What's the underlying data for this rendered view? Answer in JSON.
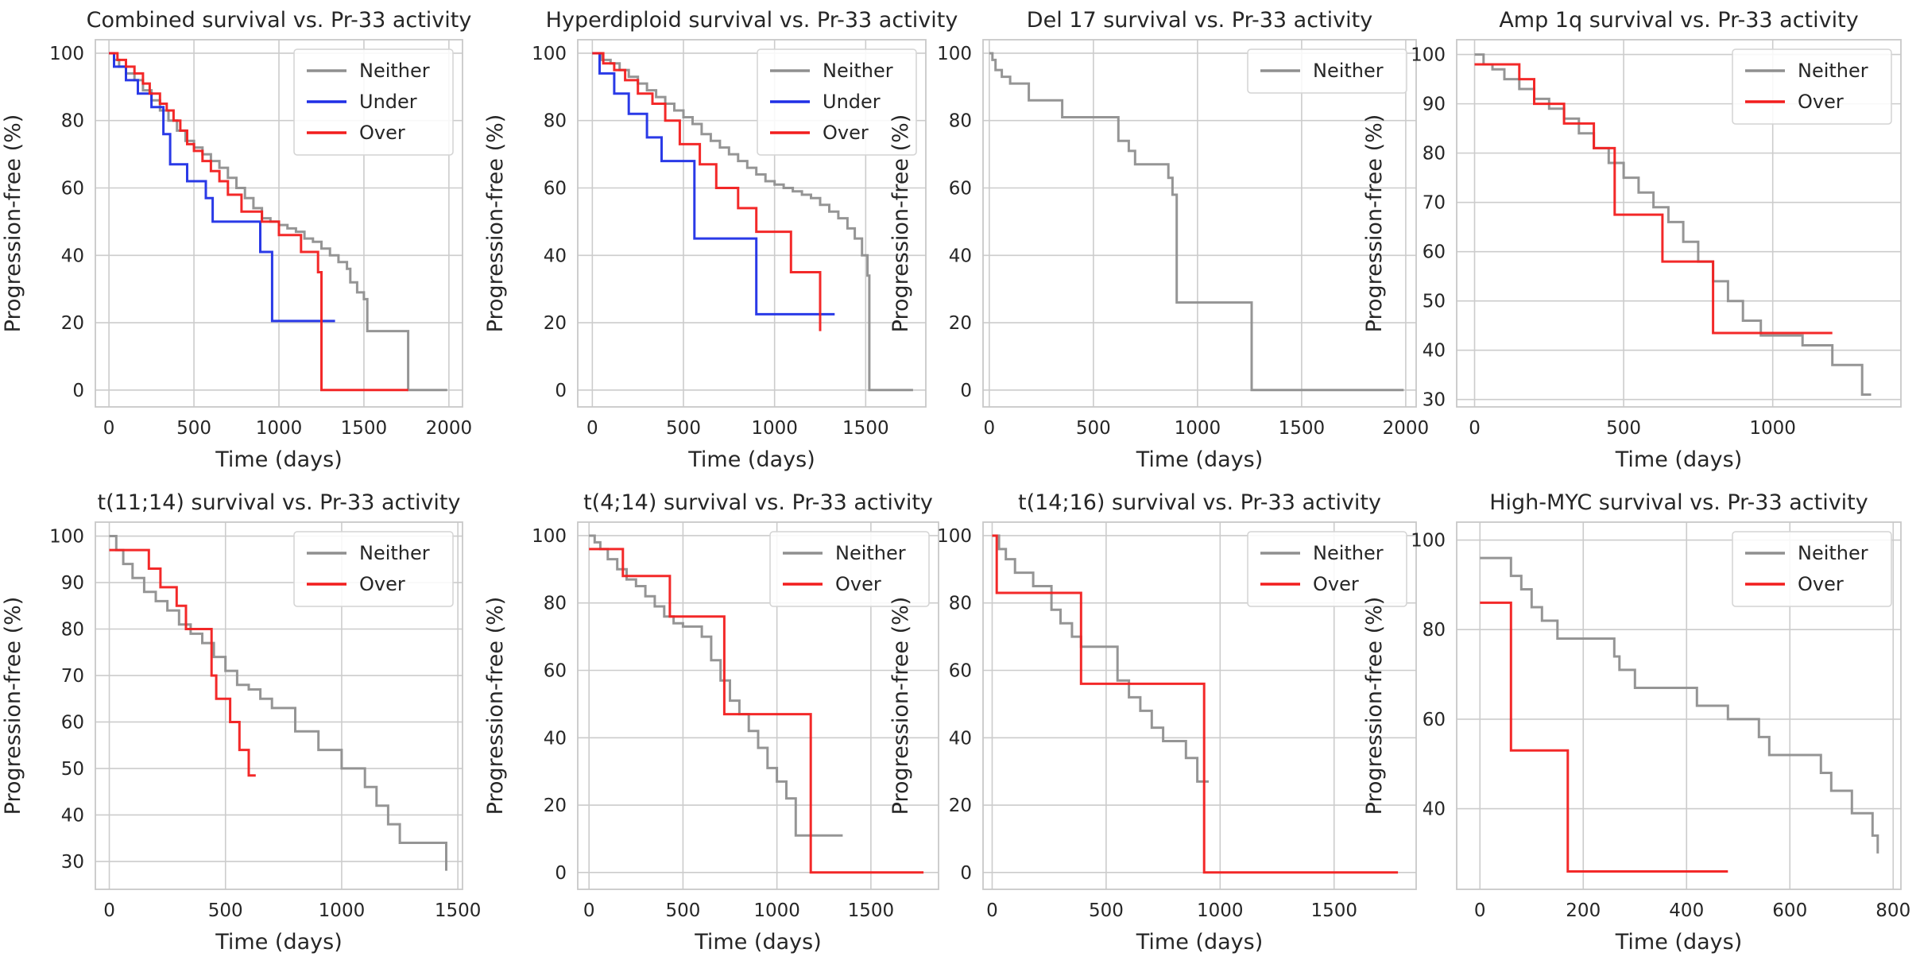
{
  "colors": {
    "Neither": "#8f8f8f",
    "Under": "#1f2fe6",
    "Over": "#f21d1d",
    "grid": "#cccccc",
    "frame": "#c8c8c8"
  },
  "chart_data": [
    {
      "type": "line",
      "step": true,
      "title": "Combined survival vs. Pr-33 activity",
      "xlabel": "Time (days)",
      "ylabel": "Progression-free (%)",
      "xlim": [
        -80,
        2080
      ],
      "ylim": [
        -5,
        104
      ],
      "xticks": [
        0,
        500,
        1000,
        1500,
        2000
      ],
      "yticks": [
        0,
        20,
        40,
        60,
        80,
        100
      ],
      "legend": [
        "Neither",
        "Under",
        "Over"
      ],
      "series": [
        {
          "name": "Neither",
          "x": [
            0,
            30,
            60,
            100,
            150,
            200,
            250,
            300,
            350,
            400,
            450,
            500,
            550,
            600,
            650,
            700,
            750,
            800,
            850,
            900,
            950,
            1000,
            1050,
            1100,
            1150,
            1200,
            1250,
            1300,
            1350,
            1400,
            1420,
            1460,
            1500,
            1520,
            1760,
            1990
          ],
          "y": [
            100,
            98,
            96,
            94,
            92,
            89,
            86,
            83,
            80,
            77,
            74,
            72,
            70,
            68,
            66,
            63,
            60,
            57,
            54,
            51,
            50,
            49,
            48,
            47,
            45,
            44,
            42,
            40,
            38,
            36,
            32,
            29,
            27,
            17.5,
            0,
            0
          ]
        },
        {
          "name": "Under",
          "x": [
            0,
            30,
            100,
            170,
            250,
            320,
            360,
            460,
            570,
            610,
            890,
            960,
            1330
          ],
          "y": [
            100,
            96,
            92,
            88,
            84,
            76,
            67,
            62,
            57,
            50,
            41,
            20.5,
            20.5
          ]
        },
        {
          "name": "Over",
          "x": [
            0,
            50,
            100,
            150,
            200,
            240,
            300,
            340,
            380,
            420,
            460,
            500,
            550,
            600,
            650,
            700,
            780,
            900,
            1000,
            1130,
            1230,
            1250,
            1760
          ],
          "y": [
            100,
            98,
            96,
            94,
            91,
            88,
            85,
            83,
            80,
            77,
            73,
            71,
            68,
            65,
            62,
            58,
            53,
            50,
            46,
            41,
            35,
            0,
            0
          ]
        }
      ]
    },
    {
      "type": "line",
      "step": true,
      "title": "Hyperdiploid survival vs. Pr-33 activity",
      "xlabel": "Time (days)",
      "ylabel": "Progression-free (%)",
      "xlim": [
        -80,
        1830
      ],
      "ylim": [
        -5,
        104
      ],
      "xticks": [
        0,
        500,
        1000,
        1500
      ],
      "yticks": [
        0,
        20,
        40,
        60,
        80,
        100
      ],
      "legend": [
        "Neither",
        "Under",
        "Over"
      ],
      "series": [
        {
          "name": "Neither",
          "x": [
            0,
            50,
            100,
            150,
            200,
            250,
            300,
            350,
            400,
            450,
            500,
            550,
            600,
            650,
            700,
            750,
            800,
            850,
            900,
            950,
            1000,
            1050,
            1100,
            1150,
            1200,
            1250,
            1300,
            1350,
            1400,
            1440,
            1480,
            1510,
            1520,
            1760
          ],
          "y": [
            100,
            98,
            97,
            95,
            93,
            91,
            89,
            87,
            85,
            83,
            81,
            79,
            76,
            74,
            72,
            70,
            68,
            66,
            64,
            62,
            61,
            60,
            59,
            58,
            57,
            55,
            53,
            51,
            48,
            45,
            40,
            34,
            0,
            0
          ]
        },
        {
          "name": "Under",
          "x": [
            0,
            40,
            120,
            200,
            300,
            380,
            560,
            900,
            1330
          ],
          "y": [
            100,
            94,
            88,
            82,
            75,
            68,
            45,
            22.5,
            22.5
          ]
        },
        {
          "name": "Over",
          "x": [
            0,
            60,
            120,
            180,
            250,
            330,
            400,
            480,
            590,
            680,
            800,
            900,
            1090,
            1250
          ],
          "y": [
            100,
            97,
            95,
            92,
            88,
            85,
            80,
            73,
            67,
            60,
            54,
            47,
            35,
            17.5
          ]
        }
      ]
    },
    {
      "type": "line",
      "step": true,
      "title": "Del 17 survival vs. Pr-33 activity",
      "xlabel": "Time (days)",
      "ylabel": "Progression-free (%)",
      "xlim": [
        -30,
        2050
      ],
      "ylim": [
        -5,
        104
      ],
      "xticks": [
        0,
        500,
        1000,
        1500,
        2000
      ],
      "yticks": [
        0,
        20,
        40,
        60,
        80,
        100
      ],
      "legend": [
        "Neither"
      ],
      "series": [
        {
          "name": "Neither",
          "x": [
            0,
            15,
            30,
            60,
            100,
            190,
            350,
            620,
            670,
            700,
            860,
            880,
            900,
            1260,
            1990
          ],
          "y": [
            100,
            98,
            95,
            93,
            91,
            86,
            81,
            74,
            71,
            67,
            63,
            58,
            26,
            0,
            0
          ]
        }
      ]
    },
    {
      "type": "line",
      "step": true,
      "title": "Amp 1q survival vs. Pr-33 activity",
      "xlabel": "Time (days)",
      "ylabel": "Progression-free (%)",
      "xlim": [
        -60,
        1430
      ],
      "ylim": [
        28.5,
        103
      ],
      "xticks": [
        0,
        500,
        1000
      ],
      "yticks": [
        30,
        40,
        50,
        60,
        70,
        80,
        90,
        100
      ],
      "legend": [
        "Neither",
        "Over"
      ],
      "series": [
        {
          "name": "Neither",
          "x": [
            0,
            30,
            60,
            100,
            150,
            200,
            250,
            300,
            350,
            400,
            450,
            500,
            550,
            600,
            650,
            700,
            750,
            800,
            850,
            900,
            960,
            1100,
            1200,
            1300,
            1330
          ],
          "y": [
            100,
            98,
            97,
            95,
            93,
            91,
            89,
            87,
            84,
            81,
            78,
            75,
            72,
            69,
            66,
            62,
            58,
            54,
            50,
            46,
            43,
            41,
            37,
            31,
            31
          ]
        },
        {
          "name": "Over",
          "x": [
            0,
            150,
            200,
            300,
            400,
            470,
            630,
            800,
            1200
          ],
          "y": [
            98,
            95,
            90,
            86,
            81,
            67.5,
            58,
            43.5,
            43.5
          ]
        }
      ]
    },
    {
      "type": "line",
      "step": true,
      "title": "t(11;14) survival vs. Pr-33 activity",
      "xlabel": "Time (days)",
      "ylabel": "Progression-free (%)",
      "xlim": [
        -60,
        1520
      ],
      "ylim": [
        24,
        103
      ],
      "xticks": [
        0,
        500,
        1000,
        1500
      ],
      "yticks": [
        30,
        40,
        50,
        60,
        70,
        80,
        90,
        100
      ],
      "legend": [
        "Neither",
        "Over"
      ],
      "series": [
        {
          "name": "Neither",
          "x": [
            0,
            30,
            60,
            100,
            150,
            200,
            250,
            300,
            350,
            400,
            450,
            500,
            550,
            600,
            650,
            700,
            800,
            900,
            1000,
            1050,
            1100,
            1150,
            1200,
            1250,
            1450
          ],
          "y": [
            100,
            97,
            94,
            91,
            88,
            86,
            84,
            81,
            79,
            77,
            74,
            71,
            68,
            67,
            65,
            63,
            58,
            54,
            50,
            50,
            46,
            42,
            38,
            34,
            28
          ]
        },
        {
          "name": "Over",
          "x": [
            0,
            170,
            220,
            290,
            330,
            440,
            460,
            520,
            560,
            600,
            630
          ],
          "y": [
            97,
            93,
            89,
            85,
            80,
            70,
            65,
            60,
            54,
            48.5,
            48.5
          ]
        }
      ]
    },
    {
      "type": "line",
      "step": true,
      "title": "t(4;14) survival vs. Pr-33 activity",
      "xlabel": "Time (days)",
      "ylabel": "Progression-free (%)",
      "xlim": [
        -60,
        1860
      ],
      "ylim": [
        -5,
        104
      ],
      "xticks": [
        0,
        500,
        1000,
        1500
      ],
      "yticks": [
        0,
        20,
        40,
        60,
        80,
        100
      ],
      "legend": [
        "Neither",
        "Over"
      ],
      "series": [
        {
          "name": "Neither",
          "x": [
            0,
            30,
            60,
            100,
            150,
            200,
            250,
            300,
            350,
            400,
            450,
            500,
            550,
            600,
            650,
            700,
            750,
            800,
            850,
            900,
            950,
            1000,
            1050,
            1100,
            1350
          ],
          "y": [
            100,
            98,
            96,
            93,
            90,
            87,
            85,
            82,
            79,
            76,
            74,
            73,
            73,
            70,
            63,
            57,
            51,
            47,
            42,
            37,
            31,
            27,
            22,
            11,
            11
          ]
        },
        {
          "name": "Over",
          "x": [
            0,
            180,
            430,
            720,
            1180,
            1780
          ],
          "y": [
            96,
            88,
            76,
            47,
            0,
            0
          ]
        }
      ]
    },
    {
      "type": "line",
      "step": true,
      "title": "t(14;16) survival vs. Pr-33 activity",
      "xlabel": "Time (days)",
      "ylabel": "Progression-free (%)",
      "xlim": [
        -40,
        1860
      ],
      "ylim": [
        -5,
        104
      ],
      "xticks": [
        0,
        500,
        1000,
        1500
      ],
      "yticks": [
        0,
        20,
        40,
        60,
        80,
        100
      ],
      "legend": [
        "Neither",
        "Over"
      ],
      "series": [
        {
          "name": "Neither",
          "x": [
            0,
            30,
            60,
            100,
            180,
            260,
            300,
            350,
            390,
            550,
            600,
            650,
            700,
            750,
            850,
            900,
            950
          ],
          "y": [
            100,
            96,
            93,
            89,
            85,
            78,
            74,
            70,
            67,
            57,
            52,
            48,
            43,
            39,
            34,
            27,
            27
          ]
        },
        {
          "name": "Over",
          "x": [
            0,
            20,
            390,
            930,
            1780
          ],
          "y": [
            100,
            83,
            56,
            0,
            0
          ]
        }
      ]
    },
    {
      "type": "line",
      "step": true,
      "title": "High-MYC survival vs. Pr-33 activity",
      "xlabel": "Time (days)",
      "ylabel": "Progression-free (%)",
      "xlim": [
        -45,
        815
      ],
      "ylim": [
        22,
        104
      ],
      "xticks": [
        0,
        200,
        400,
        600,
        800
      ],
      "yticks": [
        40,
        60,
        80,
        100
      ],
      "legend": [
        "Neither",
        "Over"
      ],
      "series": [
        {
          "name": "Neither",
          "x": [
            0,
            60,
            80,
            100,
            120,
            150,
            250,
            260,
            270,
            300,
            380,
            420,
            450,
            480,
            540,
            560,
            660,
            680,
            720,
            760,
            770
          ],
          "y": [
            96,
            92,
            89,
            85,
            82,
            78,
            78,
            74,
            71,
            67,
            67,
            63,
            63,
            60,
            56,
            52,
            48,
            44,
            39,
            34,
            30
          ]
        },
        {
          "name": "Over",
          "x": [
            0,
            60,
            160,
            170,
            480
          ],
          "y": [
            86,
            53,
            53,
            26,
            26
          ]
        }
      ]
    }
  ]
}
